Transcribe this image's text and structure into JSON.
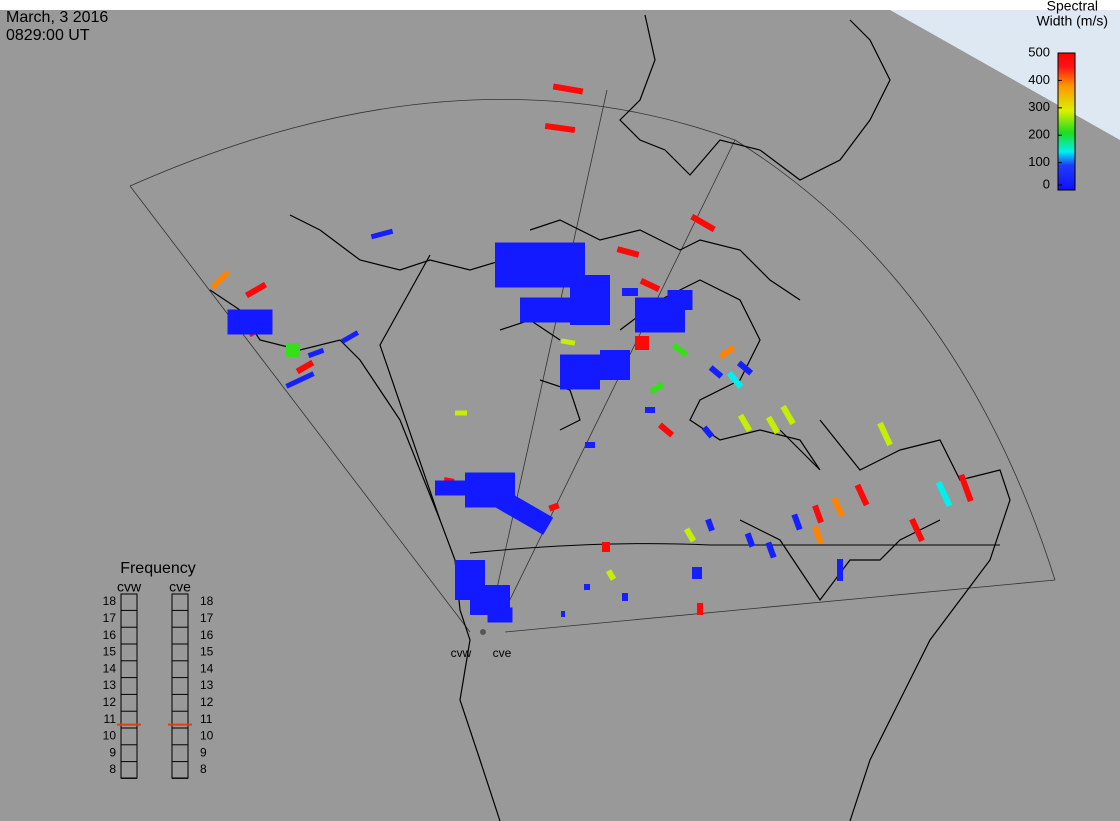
{
  "header": {
    "date": "March, 3 2016",
    "time": "0829:00 UT"
  },
  "colorbar": {
    "title_line1": "Spectral",
    "title_line2": "Width (m/s)",
    "range": [
      0,
      500
    ],
    "ticks": [
      0,
      100,
      200,
      300,
      400,
      500
    ]
  },
  "frequency": {
    "title": "Frequency",
    "range": [
      8,
      18
    ],
    "ticks": [
      8,
      9,
      10,
      11,
      12,
      13,
      14,
      15,
      16,
      17,
      18
    ],
    "radars": [
      {
        "name": "cvw",
        "value": 10.7
      },
      {
        "name": "cve",
        "value": 10.7
      }
    ]
  },
  "stations": [
    "cvw",
    "cve"
  ],
  "echoes": [
    480,
    480,
    480,
    480,
    480,
    480,
    480,
    480,
    480,
    480,
    480,
    480,
    480,
    480,
    480,
    480,
    480,
    480,
    390,
    390,
    390,
    390,
    390,
    280,
    280,
    280,
    280,
    280,
    280,
    280,
    280,
    220,
    220,
    220,
    140,
    140,
    30,
    30,
    30,
    30,
    30,
    30,
    30,
    30,
    30,
    30,
    30,
    30,
    30,
    30,
    30,
    30,
    30,
    30,
    30,
    20,
    20,
    20,
    20,
    20,
    20,
    20,
    20,
    20,
    20,
    20,
    20,
    20,
    20
  ]
}
